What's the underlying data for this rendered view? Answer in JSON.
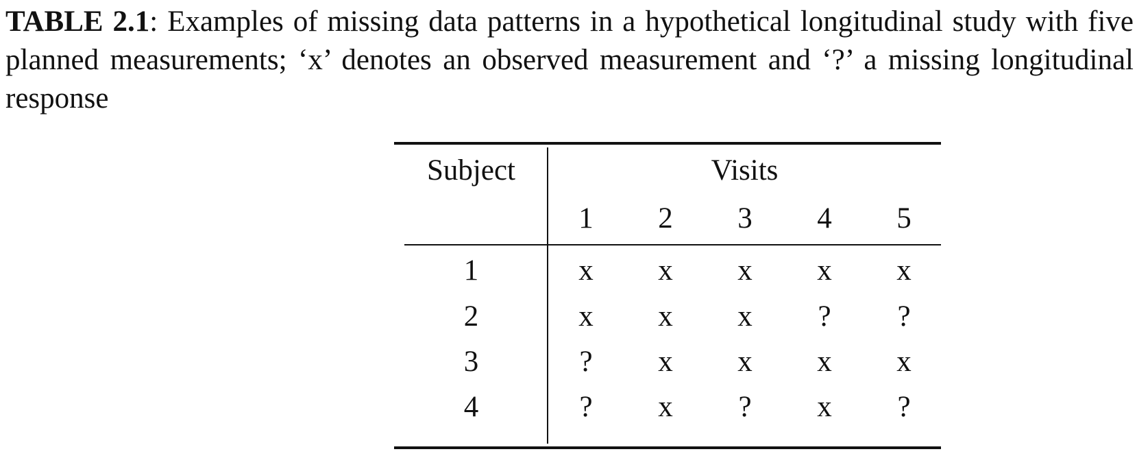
{
  "caption": {
    "label": "TABLE 2.1",
    "text": ": Examples of missing data patterns in a hypothetical longitudinal study with five planned measurements; ‘x’ denotes an observed measurement and ‘?’ a missing longitudinal response"
  },
  "table": {
    "subject_header": "Subject",
    "visits_header": "Visits",
    "visit_numbers": [
      "1",
      "2",
      "3",
      "4",
      "5"
    ],
    "rows": [
      {
        "subject": "1",
        "values": [
          "x",
          "x",
          "x",
          "x",
          "x"
        ]
      },
      {
        "subject": "2",
        "values": [
          "x",
          "x",
          "x",
          "?",
          "?"
        ]
      },
      {
        "subject": "3",
        "values": [
          "?",
          "x",
          "x",
          "x",
          "x"
        ]
      },
      {
        "subject": "4",
        "values": [
          "?",
          "x",
          "?",
          "x",
          "?"
        ]
      }
    ]
  }
}
